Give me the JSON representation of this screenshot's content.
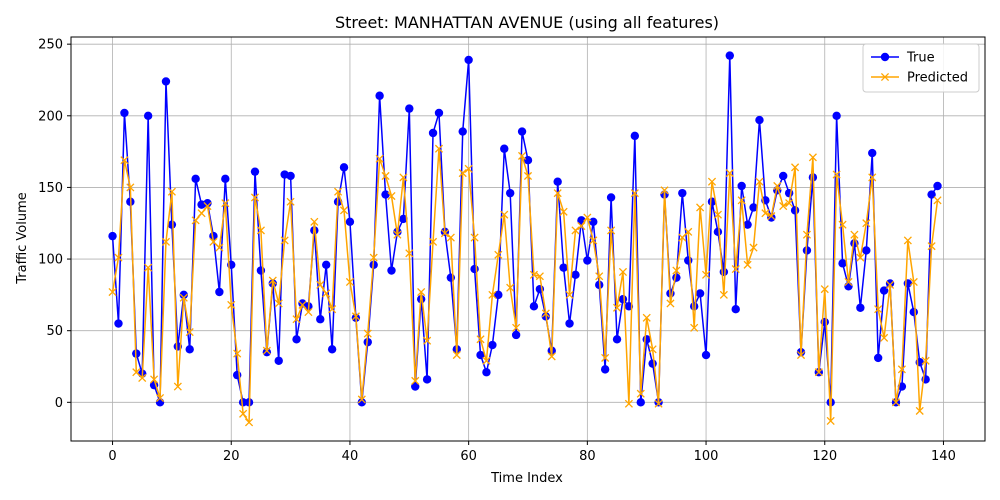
{
  "chart_data": {
    "type": "line",
    "title": "Street: MANHATTAN AVENUE (using all features)",
    "xlabel": "Time Index",
    "ylabel": "Traffic Volume",
    "xlim": [
      -7,
      147
    ],
    "ylim": [
      -27,
      255
    ],
    "xticks": [
      0,
      20,
      40,
      60,
      80,
      100,
      120,
      140
    ],
    "yticks": [
      0,
      50,
      100,
      150,
      200,
      250
    ],
    "grid": true,
    "legend_position": "top-right",
    "series": [
      {
        "name": "True",
        "color": "#0000ff",
        "marker": "circle",
        "values": [
          116,
          55,
          202,
          140,
          34,
          20,
          200,
          12,
          0,
          224,
          124,
          39,
          75,
          37,
          156,
          138,
          139,
          116,
          77,
          156,
          96,
          19,
          0,
          0,
          161,
          92,
          35,
          83,
          29,
          159,
          158,
          44,
          69,
          67,
          120,
          58,
          96,
          37,
          140,
          164,
          126,
          59,
          0,
          42,
          96,
          214,
          145,
          92,
          119,
          128,
          205,
          11,
          72,
          16,
          188,
          202,
          119,
          87,
          37,
          189,
          239,
          93,
          33,
          21,
          40,
          75,
          177,
          146,
          47,
          189,
          169,
          67,
          79,
          60,
          36,
          154,
          94,
          55,
          89,
          127,
          99,
          126,
          82,
          23,
          143,
          44,
          72,
          67,
          186,
          0,
          44,
          27,
          0,
          145,
          76,
          87,
          146,
          99,
          67,
          76,
          33,
          140,
          119,
          91,
          242,
          65,
          151,
          124,
          136,
          197,
          141,
          129,
          148,
          158,
          146,
          134,
          35,
          106,
          157,
          21,
          56,
          0,
          200,
          97,
          81,
          111,
          66,
          106,
          174,
          31,
          78,
          83,
          0,
          11,
          83,
          63,
          28,
          16,
          145,
          151
        ]
      },
      {
        "name": "Predicted",
        "color": "#ffa500",
        "marker": "x",
        "values": [
          77,
          101,
          169,
          150,
          21,
          17,
          94,
          16,
          3,
          112,
          147,
          11,
          73,
          49,
          127,
          132,
          137,
          112,
          108,
          139,
          68,
          34,
          -8,
          -14,
          143,
          120,
          36,
          85,
          69,
          113,
          140,
          58,
          68,
          63,
          126,
          82,
          76,
          65,
          147,
          134,
          84,
          60,
          2,
          48,
          101,
          170,
          158,
          144,
          117,
          157,
          104,
          15,
          77,
          43,
          112,
          177,
          118,
          115,
          33,
          160,
          163,
          115,
          44,
          29,
          75,
          103,
          131,
          80,
          52,
          172,
          158,
          89,
          88,
          62,
          32,
          146,
          133,
          75,
          120,
          123,
          129,
          113,
          88,
          31,
          120,
          66,
          91,
          -1,
          146,
          6,
          59,
          37,
          -1,
          148,
          69,
          92,
          115,
          119,
          52,
          136,
          89,
          154,
          131,
          75,
          160,
          93,
          141,
          96,
          108,
          154,
          132,
          130,
          151,
          137,
          139,
          164,
          33,
          117,
          171,
          21,
          79,
          -13,
          159,
          124,
          84,
          117,
          101,
          125,
          157,
          65,
          45,
          82,
          0,
          23,
          113,
          84,
          -6,
          29,
          109,
          141
        ]
      }
    ]
  }
}
